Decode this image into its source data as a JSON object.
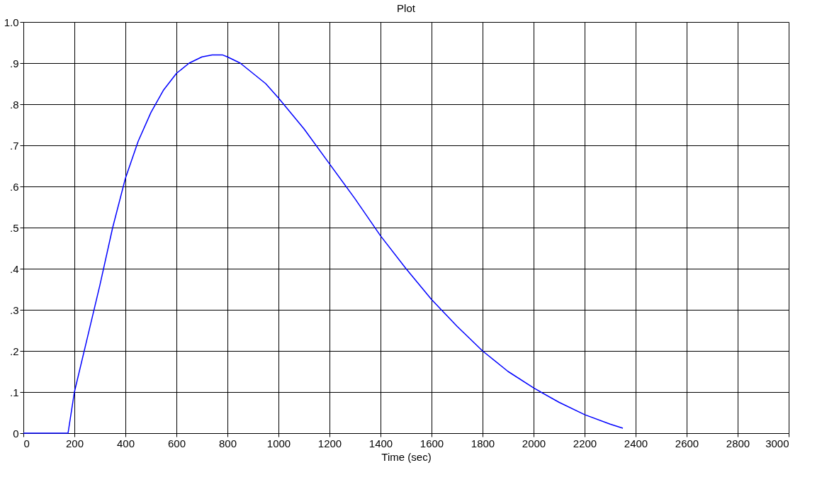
{
  "chart_data": {
    "type": "line",
    "title": "Plot",
    "xlabel": "Time (sec)",
    "x": [
      0,
      100,
      175,
      200,
      250,
      300,
      350,
      400,
      450,
      500,
      550,
      600,
      650,
      700,
      740,
      780,
      800,
      850,
      900,
      950,
      1000,
      1100,
      1200,
      1300,
      1400,
      1500,
      1600,
      1700,
      1800,
      1900,
      2000,
      2100,
      2200,
      2300,
      2350
    ],
    "series": [
      {
        "color": "#0000ff",
        "values": [
          0,
          0,
          0,
          0.1,
          0.23,
          0.36,
          0.5,
          0.62,
          0.71,
          0.78,
          0.835,
          0.875,
          0.9,
          0.915,
          0.92,
          0.92,
          0.915,
          0.9,
          0.875,
          0.85,
          0.815,
          0.74,
          0.655,
          0.57,
          0.48,
          0.4,
          0.325,
          0.26,
          0.2,
          0.15,
          0.11,
          0.075,
          0.045,
          0.022,
          0.012
        ]
      }
    ],
    "xlim": [
      0,
      3000
    ],
    "xticks": [
      0,
      200,
      400,
      600,
      800,
      1000,
      1200,
      1400,
      1600,
      1800,
      2000,
      2200,
      2400,
      2600,
      2800,
      3000
    ],
    "ylim": [
      0,
      1.0
    ],
    "yticks": [
      0,
      {
        "value": 0.1,
        "label": ".1"
      },
      {
        "value": 0.2,
        "label": ".2"
      },
      {
        "value": 0.3,
        "label": ".3"
      },
      {
        "value": 0.4,
        "label": ".4"
      },
      {
        "value": 0.5,
        "label": ".5"
      },
      {
        "value": 0.6,
        "label": ".6"
      },
      {
        "value": 0.7,
        "label": ".7"
      },
      {
        "value": 0.8,
        "label": ".8"
      },
      {
        "value": 0.9,
        "label": ".9"
      },
      {
        "value": 1.0,
        "label": "1.0"
      }
    ],
    "grid": true,
    "marker": "none",
    "line_style": "solid"
  }
}
